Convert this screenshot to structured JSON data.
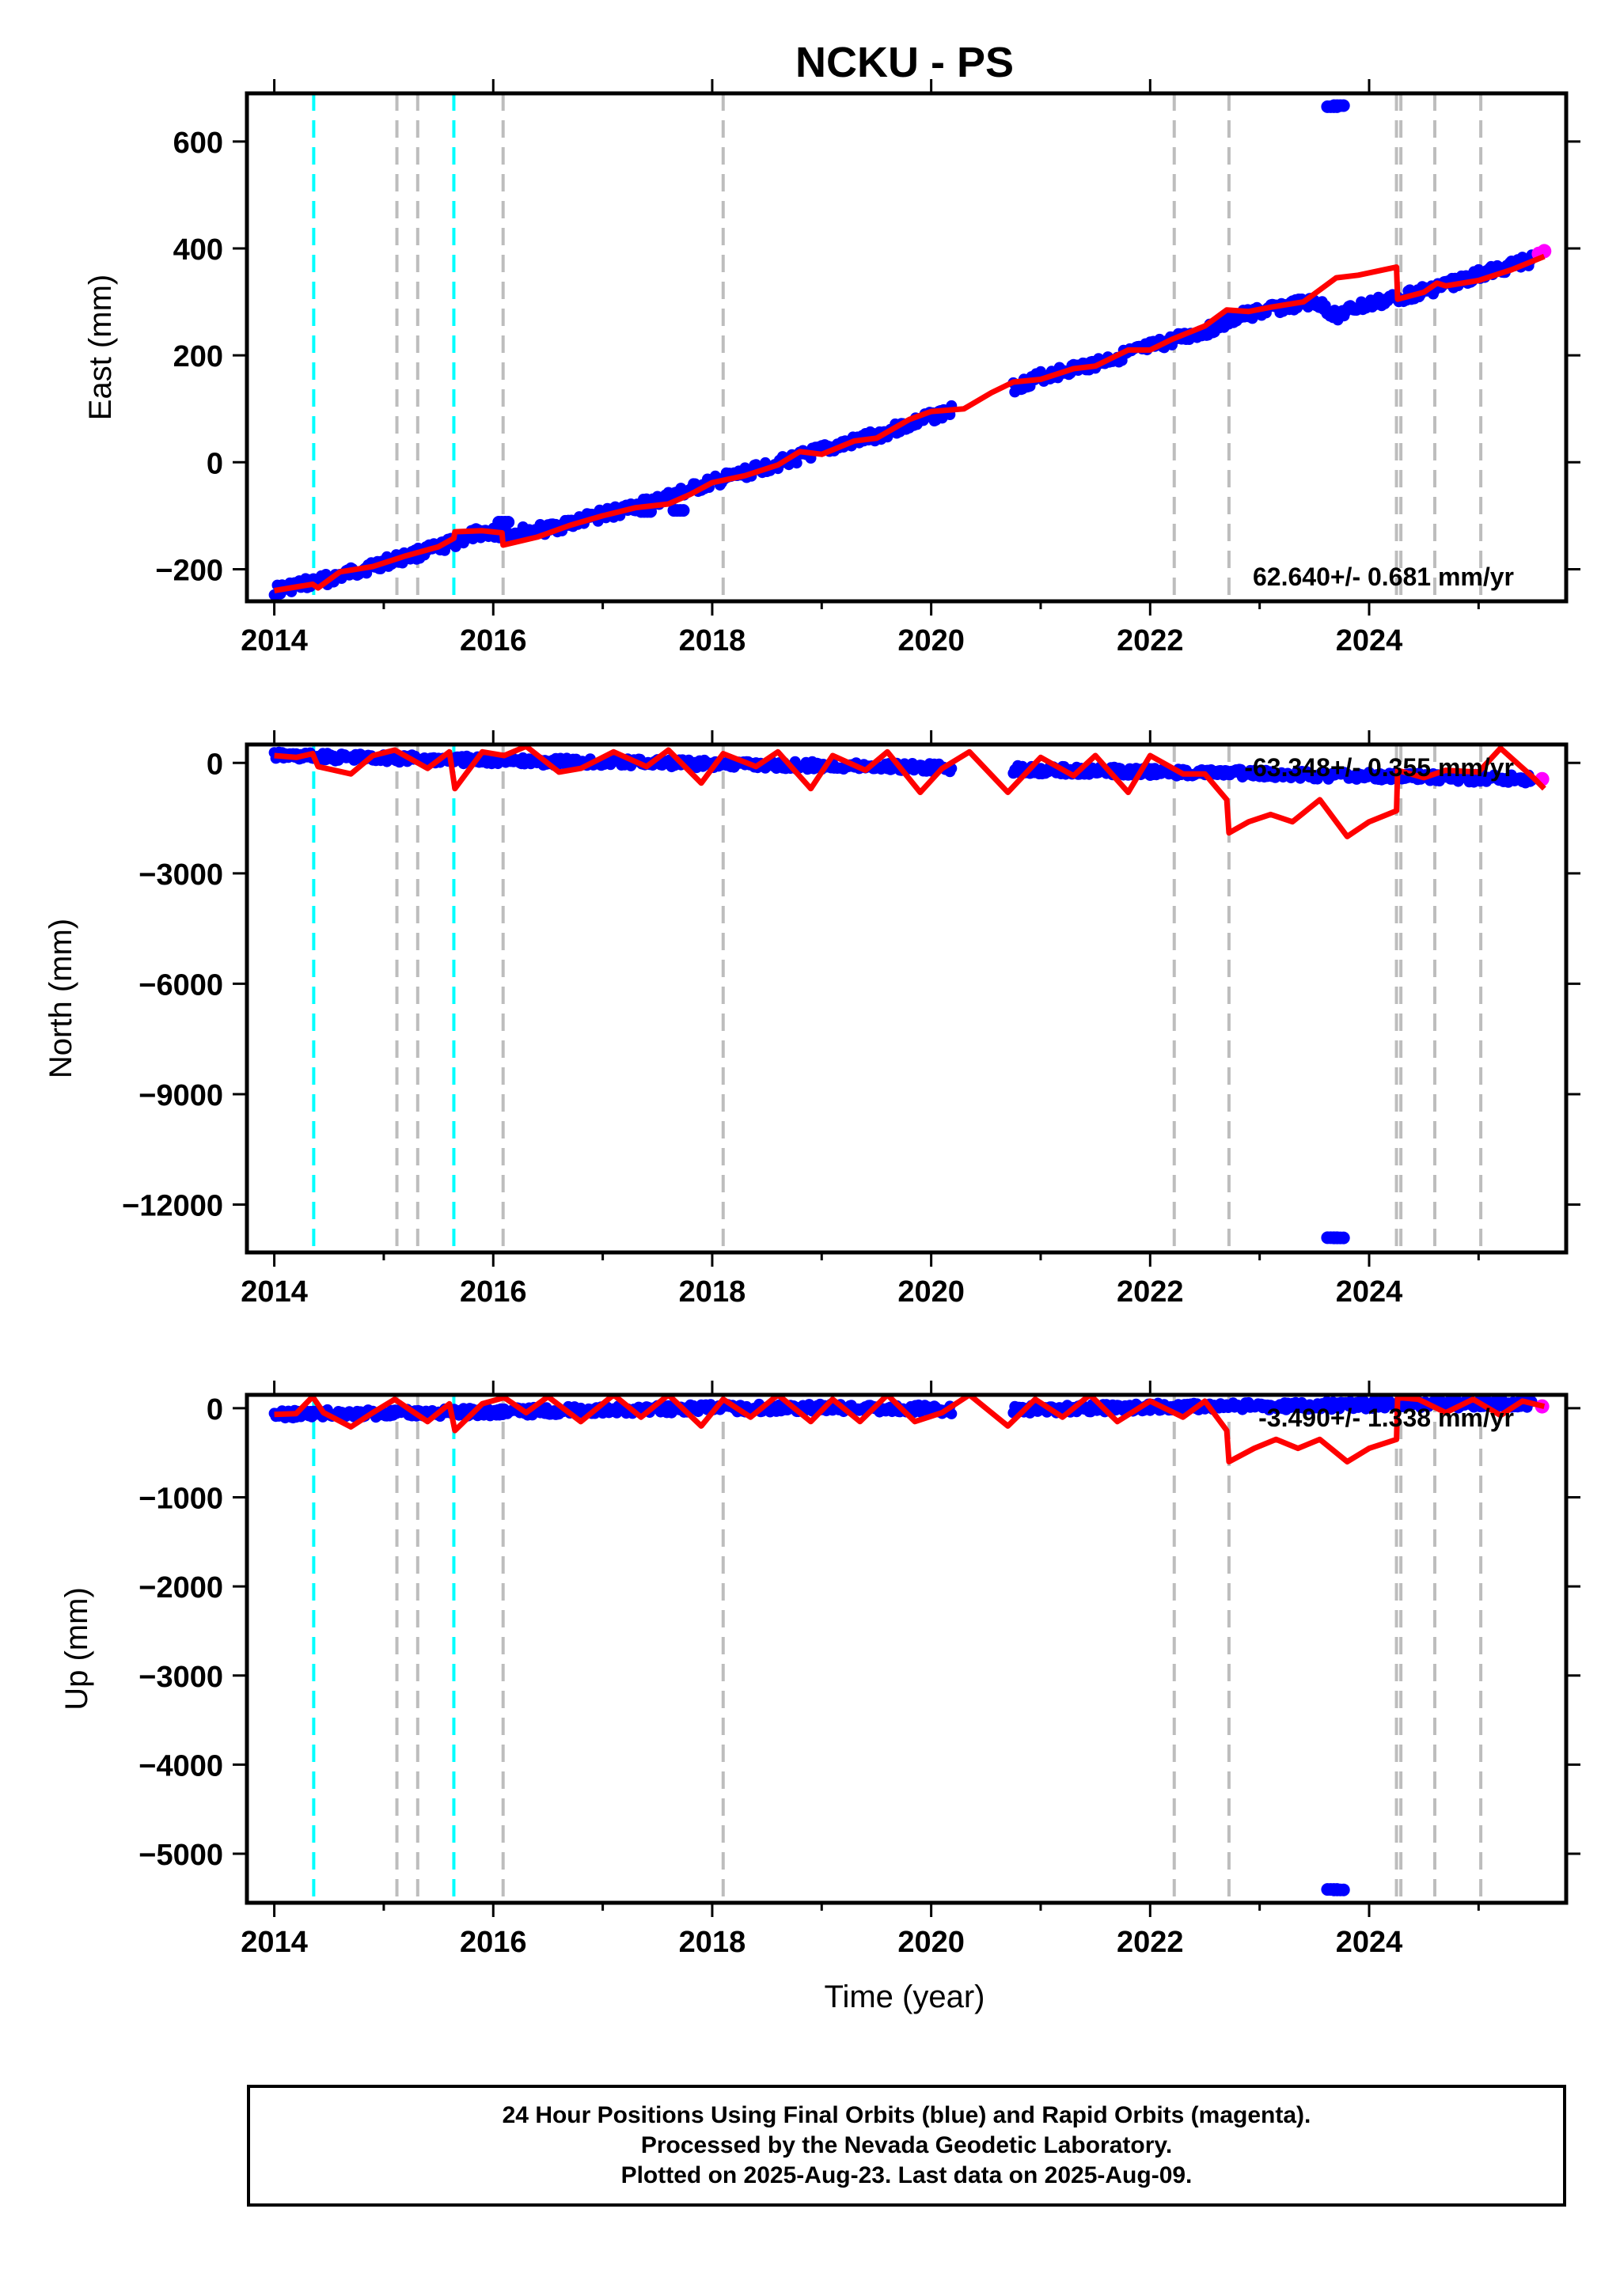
{
  "title": "NCKU - PS",
  "xlabel": "Time (year)",
  "footer": {
    "line1": "24 Hour Positions Using Final Orbits (blue) and Rapid Orbits (magenta).",
    "line2": "Processed by the Nevada Geodetic Laboratory.",
    "line3": "Plotted on 2025-Aug-23. Last data on 2025-Aug-09."
  },
  "colors": {
    "final_orbits": "#0000ff",
    "rapid_orbits": "#ff00ff",
    "model": "#ff0000",
    "equipment_change": "#00ffff",
    "earthquake": "#bdbdbd"
  },
  "chart_data": [
    {
      "type": "scatter",
      "panel": "east",
      "ylabel": "East (mm)",
      "xlim": [
        2013.75,
        2025.8
      ],
      "ylim": [
        -260,
        690
      ],
      "xticks": [
        2014,
        2016,
        2018,
        2020,
        2022,
        2024
      ],
      "yticks": [
        -200,
        0,
        200,
        400,
        600
      ],
      "ytick_labels": [
        "−200",
        "0",
        "200",
        "400",
        "600"
      ],
      "rate_label": "62.640+/- 0.681 mm/yr",
      "gap_intervals": [
        [
          2020.2,
          2020.75
        ],
        [
          2022.6,
          2022.85
        ]
      ],
      "final_orbits": {
        "points": [
          [
            2014.0,
            -240
          ],
          [
            2014.5,
            -218
          ],
          [
            2015.0,
            -188
          ],
          [
            2015.5,
            -160
          ],
          [
            2015.9,
            -130
          ],
          [
            2016.1,
            -135
          ],
          [
            2016.5,
            -125
          ],
          [
            2017.0,
            -98
          ],
          [
            2017.5,
            -72
          ],
          [
            2018.0,
            -38
          ],
          [
            2018.5,
            -8
          ],
          [
            2019.0,
            22
          ],
          [
            2019.5,
            50
          ],
          [
            2020.0,
            85
          ],
          [
            2020.2,
            97
          ],
          [
            2020.75,
            140
          ],
          [
            2021.0,
            160
          ],
          [
            2021.5,
            185
          ],
          [
            2022.0,
            215
          ],
          [
            2022.5,
            245
          ],
          [
            2022.85,
            275
          ],
          [
            2023.2,
            290
          ],
          [
            2023.5,
            300
          ],
          [
            2023.7,
            275
          ],
          [
            2023.9,
            290
          ],
          [
            2024.2,
            305
          ],
          [
            2024.5,
            320
          ],
          [
            2025.0,
            350
          ],
          [
            2025.5,
            380
          ]
        ],
        "outliers": [
          [
            2023.62,
            665
          ],
          [
            2023.68,
            667
          ],
          [
            2016.05,
            -112
          ],
          [
            2017.35,
            -92
          ],
          [
            2017.65,
            -90
          ]
        ]
      },
      "rapid_orbits": [
        [
          2025.55,
          390
        ],
        [
          2025.6,
          395
        ]
      ],
      "model": [
        [
          2014.0,
          -240
        ],
        [
          2014.35,
          -228
        ],
        [
          2014.4,
          -235
        ],
        [
          2014.6,
          -205
        ],
        [
          2014.9,
          -195
        ],
        [
          2015.2,
          -175
        ],
        [
          2015.5,
          -158
        ],
        [
          2015.64,
          -142
        ],
        [
          2015.65,
          -130
        ],
        [
          2015.9,
          -128
        ],
        [
          2016.08,
          -132
        ],
        [
          2016.09,
          -155
        ],
        [
          2016.4,
          -140
        ],
        [
          2016.7,
          -118
        ],
        [
          2017.0,
          -100
        ],
        [
          2017.3,
          -85
        ],
        [
          2017.6,
          -78
        ],
        [
          2017.8,
          -60
        ],
        [
          2018.0,
          -38
        ],
        [
          2018.3,
          -25
        ],
        [
          2018.6,
          -5
        ],
        [
          2018.8,
          20
        ],
        [
          2019.0,
          15
        ],
        [
          2019.3,
          40
        ],
        [
          2019.5,
          45
        ],
        [
          2019.8,
          80
        ],
        [
          2020.0,
          95
        ],
        [
          2020.3,
          100
        ],
        [
          2020.55,
          130
        ],
        [
          2020.75,
          150
        ],
        [
          2021.0,
          155
        ],
        [
          2021.3,
          175
        ],
        [
          2021.5,
          180
        ],
        [
          2021.8,
          210
        ],
        [
          2022.0,
          210
        ],
        [
          2022.2,
          230
        ],
        [
          2022.5,
          255
        ],
        [
          2022.7,
          285
        ],
        [
          2022.9,
          282
        ],
        [
          2023.1,
          290
        ],
        [
          2023.4,
          300
        ],
        [
          2023.7,
          345
        ],
        [
          2023.9,
          350
        ],
        [
          2024.25,
          365
        ],
        [
          2024.26,
          305
        ],
        [
          2024.5,
          318
        ],
        [
          2024.62,
          335
        ],
        [
          2024.7,
          330
        ],
        [
          2025.0,
          340
        ],
        [
          2025.3,
          360
        ],
        [
          2025.6,
          385
        ]
      ]
    },
    {
      "type": "scatter",
      "panel": "north",
      "ylabel": "North (mm)",
      "xlim": [
        2013.75,
        2025.8
      ],
      "ylim": [
        -13300,
        500
      ],
      "xticks": [
        2014,
        2016,
        2018,
        2020,
        2022,
        2024
      ],
      "yticks": [
        -12000,
        -9000,
        -6000,
        -3000,
        0
      ],
      "ytick_labels": [
        "−12000",
        "−9000",
        "−6000",
        "−3000",
        "0"
      ],
      "rate_label": "-63.348+/- 0.355 mm/yr",
      "gap_intervals": [
        [
          2020.2,
          2020.75
        ]
      ],
      "final_orbits": {
        "points": [
          [
            2014.0,
            200
          ],
          [
            2014.5,
            150
          ],
          [
            2015.0,
            130
          ],
          [
            2015.5,
            90
          ],
          [
            2016.0,
            60
          ],
          [
            2016.5,
            40
          ],
          [
            2017.0,
            20
          ],
          [
            2017.5,
            0
          ],
          [
            2018.0,
            -30
          ],
          [
            2018.5,
            -60
          ],
          [
            2019.0,
            -80
          ],
          [
            2019.5,
            -100
          ],
          [
            2020.0,
            -130
          ],
          [
            2020.2,
            -150
          ],
          [
            2020.75,
            -180
          ],
          [
            2021.0,
            -190
          ],
          [
            2021.5,
            -220
          ],
          [
            2022.0,
            -240
          ],
          [
            2022.5,
            -270
          ],
          [
            2022.8,
            -280
          ],
          [
            2023.2,
            -310
          ],
          [
            2023.5,
            -330
          ],
          [
            2024.2,
            -360
          ],
          [
            2024.6,
            -390
          ],
          [
            2025.0,
            -420
          ],
          [
            2025.5,
            -440
          ]
        ],
        "outliers": [
          [
            2023.62,
            -12900
          ],
          [
            2023.68,
            -12905
          ]
        ]
      },
      "rapid_orbits": [
        [
          2025.58,
          -440
        ]
      ],
      "model": [
        [
          2014.0,
          200
        ],
        [
          2014.2,
          150
        ],
        [
          2014.35,
          250
        ],
        [
          2014.4,
          -100
        ],
        [
          2014.7,
          -300
        ],
        [
          2014.9,
          200
        ],
        [
          2015.1,
          350
        ],
        [
          2015.4,
          -150
        ],
        [
          2015.6,
          300
        ],
        [
          2015.65,
          -700
        ],
        [
          2015.9,
          300
        ],
        [
          2016.1,
          200
        ],
        [
          2016.3,
          450
        ],
        [
          2016.6,
          -250
        ],
        [
          2016.8,
          -150
        ],
        [
          2017.1,
          300
        ],
        [
          2017.4,
          -100
        ],
        [
          2017.6,
          350
        ],
        [
          2017.9,
          -550
        ],
        [
          2018.1,
          250
        ],
        [
          2018.4,
          -100
        ],
        [
          2018.6,
          300
        ],
        [
          2018.9,
          -700
        ],
        [
          2019.1,
          200
        ],
        [
          2019.4,
          -200
        ],
        [
          2019.6,
          300
        ],
        [
          2019.9,
          -800
        ],
        [
          2020.1,
          -150
        ],
        [
          2020.35,
          300
        ],
        [
          2020.7,
          -800
        ],
        [
          2021.0,
          150
        ],
        [
          2021.3,
          -350
        ],
        [
          2021.5,
          200
        ],
        [
          2021.8,
          -800
        ],
        [
          2022.0,
          200
        ],
        [
          2022.3,
          -300
        ],
        [
          2022.5,
          -300
        ],
        [
          2022.7,
          -1000
        ],
        [
          2022.72,
          -1900
        ],
        [
          2022.9,
          -1600
        ],
        [
          2023.1,
          -1400
        ],
        [
          2023.3,
          -1600
        ],
        [
          2023.55,
          -1000
        ],
        [
          2023.8,
          -2000
        ],
        [
          2024.0,
          -1600
        ],
        [
          2024.25,
          -1300
        ],
        [
          2024.26,
          -200
        ],
        [
          2024.5,
          -400
        ],
        [
          2024.7,
          -200
        ],
        [
          2025.0,
          -250
        ],
        [
          2025.2,
          400
        ],
        [
          2025.5,
          -400
        ],
        [
          2025.6,
          -700
        ]
      ]
    },
    {
      "type": "scatter",
      "panel": "up",
      "ylabel": "Up (mm)",
      "xlim": [
        2013.75,
        2025.8
      ],
      "ylim": [
        -5550,
        150
      ],
      "xticks": [
        2014,
        2016,
        2018,
        2020,
        2022,
        2024
      ],
      "yticks": [
        -5000,
        -4000,
        -3000,
        -2000,
        -1000,
        0
      ],
      "ytick_labels": [
        "−5000",
        "−4000",
        "−3000",
        "−2000",
        "−1000",
        "0"
      ],
      "rate_label": "-3.490+/- 1.338 mm/yr",
      "gap_intervals": [
        [
          2020.2,
          2020.75
        ]
      ],
      "final_orbits": {
        "points": [
          [
            2014.0,
            -70
          ],
          [
            2014.5,
            -60
          ],
          [
            2015.0,
            -60
          ],
          [
            2015.5,
            -50
          ],
          [
            2016.0,
            -40
          ],
          [
            2016.5,
            -30
          ],
          [
            2017.0,
            -20
          ],
          [
            2017.5,
            -10
          ],
          [
            2018.0,
            0
          ],
          [
            2018.5,
            0
          ],
          [
            2019.0,
            10
          ],
          [
            2019.5,
            0
          ],
          [
            2020.0,
            -10
          ],
          [
            2020.2,
            -20
          ],
          [
            2020.75,
            -20
          ],
          [
            2021.0,
            -10
          ],
          [
            2021.5,
            0
          ],
          [
            2022.0,
            10
          ],
          [
            2022.5,
            20
          ],
          [
            2022.8,
            20
          ],
          [
            2023.2,
            20
          ],
          [
            2023.5,
            30
          ],
          [
            2024.2,
            40
          ],
          [
            2024.6,
            40
          ],
          [
            2025.0,
            50
          ],
          [
            2025.5,
            50
          ]
        ],
        "outliers": [
          [
            2023.62,
            -5400
          ],
          [
            2023.68,
            -5405
          ]
        ]
      },
      "rapid_orbits": [
        [
          2025.58,
          20
        ]
      ],
      "model": [
        [
          2014.0,
          -70
        ],
        [
          2014.2,
          -60
        ],
        [
          2014.35,
          130
        ],
        [
          2014.45,
          -50
        ],
        [
          2014.7,
          -210
        ],
        [
          2014.9,
          -50
        ],
        [
          2015.1,
          100
        ],
        [
          2015.4,
          -150
        ],
        [
          2015.6,
          50
        ],
        [
          2015.65,
          -250
        ],
        [
          2015.9,
          50
        ],
        [
          2016.1,
          120
        ],
        [
          2016.3,
          -50
        ],
        [
          2016.5,
          130
        ],
        [
          2016.8,
          -150
        ],
        [
          2017.1,
          150
        ],
        [
          2017.35,
          -100
        ],
        [
          2017.6,
          150
        ],
        [
          2017.9,
          -200
        ],
        [
          2018.1,
          100
        ],
        [
          2018.35,
          -100
        ],
        [
          2018.6,
          150
        ],
        [
          2018.9,
          -150
        ],
        [
          2019.1,
          100
        ],
        [
          2019.35,
          -150
        ],
        [
          2019.6,
          150
        ],
        [
          2019.85,
          -150
        ],
        [
          2020.1,
          -50
        ],
        [
          2020.35,
          150
        ],
        [
          2020.7,
          -200
        ],
        [
          2020.95,
          100
        ],
        [
          2021.2,
          -100
        ],
        [
          2021.45,
          150
        ],
        [
          2021.7,
          -150
        ],
        [
          2022.0,
          80
        ],
        [
          2022.3,
          -100
        ],
        [
          2022.5,
          80
        ],
        [
          2022.7,
          -250
        ],
        [
          2022.72,
          -600
        ],
        [
          2022.95,
          -450
        ],
        [
          2023.15,
          -350
        ],
        [
          2023.35,
          -450
        ],
        [
          2023.55,
          -350
        ],
        [
          2023.8,
          -600
        ],
        [
          2024.0,
          -450
        ],
        [
          2024.25,
          -350
        ],
        [
          2024.26,
          120
        ],
        [
          2024.45,
          100
        ],
        [
          2024.7,
          -50
        ],
        [
          2024.95,
          100
        ],
        [
          2025.2,
          -80
        ],
        [
          2025.4,
          80
        ],
        [
          2025.6,
          20
        ]
      ]
    }
  ],
  "event_lines": {
    "equipment_change": [
      2014.36,
      2015.64
    ],
    "earthquake": [
      2015.12,
      2015.31,
      2016.09,
      2018.1,
      2022.22,
      2022.72,
      2024.25,
      2024.29,
      2024.6,
      2025.02
    ]
  }
}
